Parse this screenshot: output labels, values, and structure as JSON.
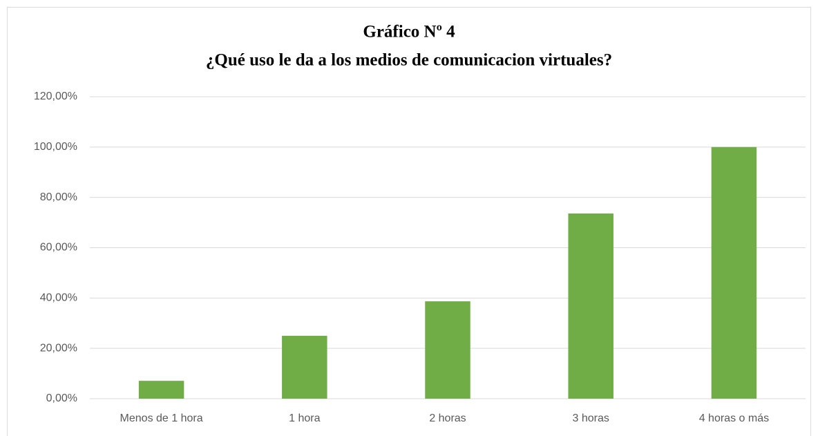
{
  "chart_data": {
    "type": "bar",
    "title": "Gráfico Nº 4",
    "subtitle": "¿Qué uso le da a los medios de comunicacion virtuales?",
    "categories": [
      "Menos de 1 hora",
      "1 hora",
      "2 horas",
      "3 horas",
      "4 horas o más"
    ],
    "values": [
      7.1,
      25,
      38.7,
      73.6,
      100
    ],
    "color": "#70ad47",
    "ylim": [
      0,
      120
    ],
    "yticks": [
      {
        "value": 0,
        "label": "0,00%"
      },
      {
        "value": 20,
        "label": "20,00%"
      },
      {
        "value": 40,
        "label": "40,00%"
      },
      {
        "value": 60,
        "label": "60,00%"
      },
      {
        "value": 80,
        "label": "80,00%"
      },
      {
        "value": 100,
        "label": "100,00%"
      },
      {
        "value": 120,
        "label": "120,00%"
      }
    ],
    "grid": true
  }
}
